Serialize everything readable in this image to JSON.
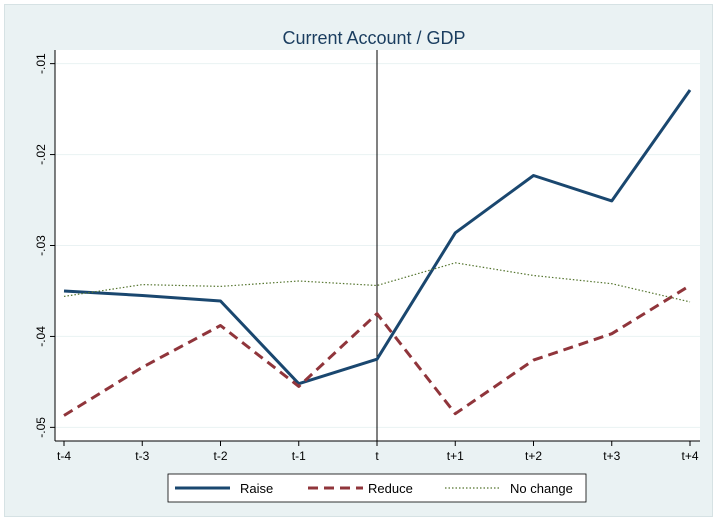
{
  "chart_data": {
    "type": "line",
    "title": "Current Account / GDP",
    "xlabel": "",
    "ylabel": "",
    "categories": [
      "t-4",
      "t-3",
      "t-2",
      "t-1",
      "t",
      "t+1",
      "t+2",
      "t+3",
      "t+4"
    ],
    "ylim": [
      -0.0515,
      -0.0085
    ],
    "yticks": [
      -0.05,
      -0.04,
      -0.03,
      -0.02,
      -0.01
    ],
    "ytick_labels": [
      "-.05",
      "-.04",
      "-.03",
      "-.02",
      "-.01"
    ],
    "vline_at": "t",
    "grid": "horizontal",
    "legend_position": "bottom",
    "series": [
      {
        "name": "Raise",
        "color": "#1a476f",
        "style": "solid",
        "values": [
          -0.035,
          -0.0355,
          -0.0361,
          -0.0452,
          -0.0425,
          -0.0286,
          -0.0223,
          -0.0251,
          -0.0129
        ]
      },
      {
        "name": "Reduce",
        "color": "#90353b",
        "style": "dashed",
        "values": [
          -0.0487,
          -0.0434,
          -0.0388,
          -0.0455,
          -0.0375,
          -0.0485,
          -0.0426,
          -0.0397,
          -0.0344
        ]
      },
      {
        "name": "No change",
        "color": "#55752f",
        "style": "dotted",
        "values": [
          -0.0356,
          -0.0343,
          -0.0345,
          -0.0339,
          -0.0344,
          -0.0319,
          -0.0333,
          -0.0342,
          -0.0362
        ]
      }
    ]
  }
}
